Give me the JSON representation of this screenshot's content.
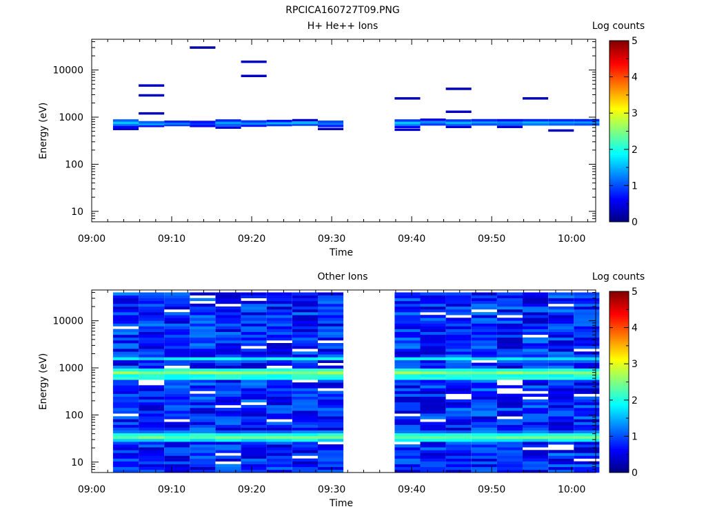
{
  "figure": {
    "title": "RPCICA160727T09.PNG"
  },
  "chart_data": [
    {
      "type": "heatmap",
      "title": "H+ He++ Ions",
      "xlabel": "Time",
      "ylabel": "Energy (eV)",
      "x_scale": "time",
      "xlim": [
        "09:00",
        "10:03"
      ],
      "x_ticks": [
        "09:00",
        "09:10",
        "09:20",
        "09:30",
        "09:40",
        "09:50",
        "10:00"
      ],
      "y_scale": "log",
      "ylim": [
        6,
        45000
      ],
      "y_ticks": [
        10,
        100,
        1000,
        10000
      ],
      "y_tick_labels": [
        "10",
        "100",
        "1000",
        "10000"
      ],
      "colorbar": {
        "label": "Log counts",
        "range": [
          0,
          5
        ],
        "ticks": [
          "0",
          "1",
          "2",
          "3",
          "4",
          "5"
        ],
        "colormap": "jet"
      },
      "time_bins": [
        "09:02:40",
        "09:05:52",
        "09:09:04",
        "09:12:16",
        "09:15:28",
        "09:18:40",
        "09:21:52",
        "09:25:04",
        "09:28:16",
        "09:31:28",
        "09:34:40",
        "09:37:52",
        "09:41:04",
        "09:44:16",
        "09:47:28",
        "09:50:40",
        "09:53:52",
        "09:57:04",
        "10:00:16"
      ],
      "data_gap": [
        "09:31:28",
        "09:37:52"
      ],
      "cells": [
        {
          "t": 0,
          "e": 560,
          "v": 0.4
        },
        {
          "t": 0,
          "e": 620,
          "v": 0.6
        },
        {
          "t": 0,
          "e": 690,
          "v": 1.2
        },
        {
          "t": 0,
          "e": 760,
          "v": 1.6
        },
        {
          "t": 0,
          "e": 850,
          "v": 1.1
        },
        {
          "t": 1,
          "e": 650,
          "v": 0.7
        },
        {
          "t": 1,
          "e": 710,
          "v": 1.4
        },
        {
          "t": 1,
          "e": 780,
          "v": 1.1
        },
        {
          "t": 1,
          "e": 1200,
          "v": 0.3
        },
        {
          "t": 1,
          "e": 2900,
          "v": 0.3
        },
        {
          "t": 1,
          "e": 4700,
          "v": 0.3
        },
        {
          "t": 2,
          "e": 680,
          "v": 0.9
        },
        {
          "t": 2,
          "e": 740,
          "v": 1.3
        },
        {
          "t": 2,
          "e": 800,
          "v": 0.8
        },
        {
          "t": 3,
          "e": 650,
          "v": 0.6
        },
        {
          "t": 3,
          "e": 720,
          "v": 0.9
        },
        {
          "t": 3,
          "e": 790,
          "v": 0.7
        },
        {
          "t": 3,
          "e": 30000,
          "v": 0.2
        },
        {
          "t": 4,
          "e": 600,
          "v": 0.5
        },
        {
          "t": 4,
          "e": 680,
          "v": 1.1
        },
        {
          "t": 4,
          "e": 760,
          "v": 1.4
        },
        {
          "t": 4,
          "e": 850,
          "v": 0.8
        },
        {
          "t": 5,
          "e": 660,
          "v": 0.7
        },
        {
          "t": 5,
          "e": 730,
          "v": 1.3
        },
        {
          "t": 5,
          "e": 810,
          "v": 0.9
        },
        {
          "t": 5,
          "e": 7500,
          "v": 0.3
        },
        {
          "t": 5,
          "e": 15000,
          "v": 0.3
        },
        {
          "t": 6,
          "e": 680,
          "v": 0.9
        },
        {
          "t": 6,
          "e": 750,
          "v": 1.5
        },
        {
          "t": 6,
          "e": 830,
          "v": 0.7
        },
        {
          "t": 7,
          "e": 690,
          "v": 1.0
        },
        {
          "t": 7,
          "e": 760,
          "v": 1.5
        },
        {
          "t": 7,
          "e": 860,
          "v": 0.4
        },
        {
          "t": 8,
          "e": 560,
          "v": 0.3
        },
        {
          "t": 8,
          "e": 650,
          "v": 0.7
        },
        {
          "t": 8,
          "e": 720,
          "v": 1.2
        },
        {
          "t": 8,
          "e": 800,
          "v": 1.0
        },
        {
          "t": 11,
          "e": 540,
          "v": 0.4
        },
        {
          "t": 11,
          "e": 620,
          "v": 0.6
        },
        {
          "t": 11,
          "e": 690,
          "v": 1.3
        },
        {
          "t": 11,
          "e": 760,
          "v": 1.6
        },
        {
          "t": 11,
          "e": 850,
          "v": 0.9
        },
        {
          "t": 11,
          "e": 2500,
          "v": 0.3
        },
        {
          "t": 12,
          "e": 700,
          "v": 0.9
        },
        {
          "t": 12,
          "e": 780,
          "v": 1.3
        },
        {
          "t": 12,
          "e": 880,
          "v": 0.5
        },
        {
          "t": 13,
          "e": 620,
          "v": 0.4
        },
        {
          "t": 13,
          "e": 690,
          "v": 1.1
        },
        {
          "t": 13,
          "e": 760,
          "v": 1.5
        },
        {
          "t": 13,
          "e": 850,
          "v": 0.9
        },
        {
          "t": 13,
          "e": 1300,
          "v": 0.3
        },
        {
          "t": 13,
          "e": 4000,
          "v": 0.3
        },
        {
          "t": 14,
          "e": 700,
          "v": 1.0
        },
        {
          "t": 14,
          "e": 780,
          "v": 1.4
        },
        {
          "t": 14,
          "e": 860,
          "v": 0.8
        },
        {
          "t": 15,
          "e": 620,
          "v": 0.4
        },
        {
          "t": 15,
          "e": 700,
          "v": 1.1
        },
        {
          "t": 15,
          "e": 780,
          "v": 1.3
        },
        {
          "t": 15,
          "e": 860,
          "v": 0.7
        },
        {
          "t": 16,
          "e": 700,
          "v": 1.2
        },
        {
          "t": 16,
          "e": 780,
          "v": 1.5
        },
        {
          "t": 16,
          "e": 860,
          "v": 0.8
        },
        {
          "t": 16,
          "e": 2500,
          "v": 0.3
        },
        {
          "t": 17,
          "e": 520,
          "v": 0.3
        },
        {
          "t": 17,
          "e": 700,
          "v": 1.1
        },
        {
          "t": 17,
          "e": 780,
          "v": 1.4
        },
        {
          "t": 17,
          "e": 860,
          "v": 0.8
        },
        {
          "t": 18,
          "e": 700,
          "v": 1.0
        },
        {
          "t": 18,
          "e": 780,
          "v": 1.4
        },
        {
          "t": 18,
          "e": 860,
          "v": 0.8
        }
      ]
    },
    {
      "type": "heatmap",
      "title": "Other Ions",
      "xlabel": "Time",
      "ylabel": "Energy (eV)",
      "x_scale": "time",
      "xlim": [
        "09:00",
        "10:03"
      ],
      "x_ticks": [
        "09:00",
        "09:10",
        "09:20",
        "09:30",
        "09:40",
        "09:50",
        "10:00"
      ],
      "y_scale": "log",
      "ylim": [
        6,
        45000
      ],
      "y_ticks": [
        10,
        100,
        1000,
        10000
      ],
      "y_tick_labels": [
        "10",
        "100",
        "1000",
        "10000"
      ],
      "colorbar": {
        "label": "Log counts",
        "range": [
          0,
          5
        ],
        "ticks": [
          "0",
          "1",
          "2",
          "3",
          "4",
          "5"
        ],
        "colormap": "jet"
      },
      "time_bins": [
        "09:02:40",
        "09:05:52",
        "09:09:04",
        "09:12:16",
        "09:15:28",
        "09:18:40",
        "09:21:52",
        "09:25:04",
        "09:28:16",
        "09:31:28",
        "09:34:40",
        "09:37:52",
        "09:41:04",
        "09:44:16",
        "09:47:28",
        "09:50:40",
        "09:53:52",
        "09:57:04",
        "10:00:16"
      ],
      "data_gap": [
        "09:31:28",
        "09:37:52"
      ],
      "energy_range": [
        6,
        40000
      ],
      "background_level": [
        0.3,
        1.3
      ],
      "bands": [
        {
          "e": [
            600,
            700
          ],
          "v": 2.0
        },
        {
          "e": [
            700,
            780
          ],
          "v": 2.9
        },
        {
          "e": [
            780,
            900
          ],
          "v": 2.6
        },
        {
          "e": [
            900,
            1000
          ],
          "v": 2.0
        },
        {
          "e": [
            1500,
            1800
          ],
          "v": 1.8
        },
        {
          "e": [
            28,
            32
          ],
          "v": 1.8
        },
        {
          "e": [
            32,
            38
          ],
          "v": 2.4
        },
        {
          "e": [
            38,
            44
          ],
          "v": 2.0
        },
        {
          "e": [
            44,
            50
          ],
          "v": 1.2
        }
      ]
    }
  ]
}
